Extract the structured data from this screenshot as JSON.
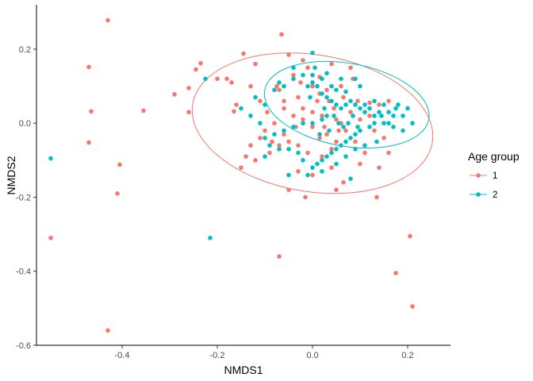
{
  "chart_data": {
    "type": "scatter",
    "title": "",
    "xlabel": "NMDS1",
    "ylabel": "NMDS2",
    "xlim": [
      -0.58,
      0.29
    ],
    "ylim": [
      -0.6,
      0.32
    ],
    "x_ticks": [
      -0.4,
      -0.2,
      0.0,
      0.2
    ],
    "x_tick_labels": [
      "-0.4",
      "-0.2",
      "0.0",
      "0.2"
    ],
    "y_ticks": [
      -0.6,
      -0.4,
      -0.2,
      0.0,
      0.2
    ],
    "y_tick_labels": [
      "-0.6",
      "-0.4",
      "-0.2",
      "0.0",
      "0.2"
    ],
    "grid": false,
    "legend": {
      "title": "Age group",
      "position": "right"
    },
    "series": [
      {
        "name": "1",
        "color": "#F8766D",
        "ellipse": {
          "center": [
            0.0,
            0.0
          ],
          "rx": 0.255,
          "ry": 0.185,
          "angle_deg": -9
        },
        "points": [
          [
            -0.43,
            0.278
          ],
          [
            -0.47,
            0.152
          ],
          [
            -0.465,
            0.032
          ],
          [
            -0.47,
            -0.052
          ],
          [
            -0.405,
            -0.112
          ],
          [
            -0.41,
            -0.19
          ],
          [
            -0.55,
            -0.31
          ],
          [
            -0.43,
            -0.56
          ],
          [
            -0.355,
            0.034
          ],
          [
            -0.29,
            0.078
          ],
          [
            -0.26,
            0.095
          ],
          [
            -0.26,
            0.03
          ],
          [
            -0.245,
            0.145
          ],
          [
            -0.235,
            0.162
          ],
          [
            -0.18,
            0.12
          ],
          [
            -0.165,
            0.032
          ],
          [
            -0.145,
            0.188
          ],
          [
            -0.13,
            0.1
          ],
          [
            -0.12,
            0.16
          ],
          [
            -0.065,
            0.24
          ],
          [
            -0.07,
            0.09
          ],
          [
            -0.05,
            0.185
          ],
          [
            -0.02,
            0.17
          ],
          [
            -0.01,
            0.15
          ],
          [
            0.015,
            0.125
          ],
          [
            0.0,
            0.1
          ],
          [
            0.04,
            0.16
          ],
          [
            0.08,
            0.15
          ],
          [
            0.095,
            0.06
          ],
          [
            0.12,
            0.055
          ],
          [
            0.14,
            0.05
          ],
          [
            0.16,
            0.06
          ],
          [
            0.13,
            -0.02
          ],
          [
            0.15,
            -0.04
          ],
          [
            0.16,
            -0.08
          ],
          [
            0.14,
            -0.12
          ],
          [
            0.135,
            -0.2
          ],
          [
            0.205,
            -0.305
          ],
          [
            0.175,
            -0.405
          ],
          [
            0.21,
            -0.495
          ],
          [
            -0.07,
            -0.36
          ],
          [
            -0.05,
            -0.18
          ],
          [
            -0.015,
            -0.2
          ],
          [
            0.05,
            -0.18
          ],
          [
            0.065,
            -0.16
          ],
          [
            0.1,
            -0.11
          ],
          [
            -0.1,
            -0.02
          ],
          [
            -0.095,
            0.03
          ],
          [
            -0.06,
            0.04
          ],
          [
            -0.04,
            0.02
          ],
          [
            -0.02,
            0.01
          ],
          [
            0.0,
            -0.01
          ],
          [
            0.02,
            0.02
          ],
          [
            0.03,
            -0.03
          ],
          [
            0.05,
            0.01
          ],
          [
            0.06,
            0.0
          ],
          [
            0.07,
            -0.02
          ],
          [
            0.045,
            0.04
          ],
          [
            0.01,
            0.06
          ],
          [
            -0.03,
            0.07
          ],
          [
            -0.06,
            0.06
          ],
          [
            -0.08,
            0.0
          ],
          [
            -0.11,
            -0.04
          ],
          [
            -0.13,
            -0.06
          ],
          [
            -0.14,
            -0.09
          ],
          [
            -0.12,
            -0.1
          ],
          [
            -0.09,
            -0.08
          ],
          [
            -0.07,
            -0.06
          ],
          [
            -0.05,
            -0.05
          ],
          [
            -0.03,
            -0.06
          ],
          [
            -0.01,
            -0.08
          ],
          [
            0.02,
            -0.09
          ],
          [
            0.04,
            -0.07
          ],
          [
            0.05,
            -0.05
          ],
          [
            0.09,
            -0.05
          ],
          [
            0.11,
            -0.08
          ],
          [
            0.03,
            0.09
          ],
          [
            0.06,
            0.1
          ],
          [
            0.085,
            0.12
          ],
          [
            -0.025,
            0.11
          ],
          [
            0.0,
            0.03
          ],
          [
            0.025,
            -0.01
          ],
          [
            0.055,
            -0.02
          ],
          [
            -0.035,
            -0.01
          ],
          [
            -0.06,
            -0.03
          ],
          [
            -0.085,
            -0.05
          ],
          [
            -0.16,
            0.05
          ],
          [
            -0.2,
            0.12
          ],
          [
            -0.04,
            0.13
          ],
          [
            0.015,
            -0.04
          ],
          [
            0.035,
            0.06
          ],
          [
            0.08,
            0.03
          ],
          [
            0.1,
            0.01
          ],
          [
            0.12,
            0.02
          ],
          [
            -0.02,
            0.04
          ],
          [
            -0.075,
            0.1
          ],
          [
            -0.15,
            -0.12
          ],
          [
            -0.03,
            -0.13
          ],
          [
            0.0,
            -0.14
          ],
          [
            -0.17,
            0.11
          ],
          [
            -0.11,
            0.06
          ],
          [
            0.065,
            0.07
          ],
          [
            0.015,
            0.08
          ],
          [
            0.04,
            -0.12
          ]
        ]
      },
      {
        "name": "2",
        "color": "#00BFC4",
        "ellipse": {
          "center": [
            0.072,
            0.05
          ],
          "rx": 0.175,
          "ry": 0.112,
          "angle_deg": -10
        },
        "points": [
          [
            -0.55,
            -0.095
          ],
          [
            -0.215,
            -0.31
          ],
          [
            -0.225,
            0.12
          ],
          [
            -0.15,
            0.04
          ],
          [
            -0.13,
            0.02
          ],
          [
            -0.12,
            0.07
          ],
          [
            -0.1,
            0.05
          ],
          [
            -0.08,
            0.09
          ],
          [
            -0.07,
            0.11
          ],
          [
            -0.06,
            0.1
          ],
          [
            -0.04,
            0.12
          ],
          [
            -0.02,
            0.13
          ],
          [
            0.0,
            0.11
          ],
          [
            0.005,
            0.15
          ],
          [
            0.01,
            0.1
          ],
          [
            0.02,
            0.08
          ],
          [
            0.03,
            0.07
          ],
          [
            0.04,
            0.06
          ],
          [
            0.05,
            0.05
          ],
          [
            0.06,
            0.04
          ],
          [
            0.07,
            0.05
          ],
          [
            0.08,
            0.06
          ],
          [
            0.09,
            0.05
          ],
          [
            0.1,
            0.04
          ],
          [
            0.11,
            0.05
          ],
          [
            0.12,
            0.04
          ],
          [
            0.14,
            0.03
          ],
          [
            0.15,
            0.05
          ],
          [
            0.16,
            0.03
          ],
          [
            0.17,
            0.02
          ],
          [
            0.18,
            0.05
          ],
          [
            0.19,
            0.02
          ],
          [
            0.2,
            0.04
          ],
          [
            0.21,
            0.0
          ],
          [
            0.19,
            -0.02
          ],
          [
            0.17,
            -0.01
          ],
          [
            0.15,
            0.0
          ],
          [
            0.13,
            0.0
          ],
          [
            0.12,
            -0.01
          ],
          [
            0.1,
            -0.02
          ],
          [
            0.09,
            -0.03
          ],
          [
            0.08,
            -0.04
          ],
          [
            0.07,
            -0.05
          ],
          [
            0.06,
            -0.06
          ],
          [
            0.05,
            -0.07
          ],
          [
            0.04,
            -0.08
          ],
          [
            0.03,
            -0.09
          ],
          [
            0.02,
            -0.1
          ],
          [
            0.01,
            -0.11
          ],
          [
            0.0,
            -0.12
          ],
          [
            -0.02,
            -0.1
          ],
          [
            -0.03,
            -0.08
          ],
          [
            -0.05,
            -0.07
          ],
          [
            -0.07,
            -0.07
          ],
          [
            -0.09,
            -0.06
          ],
          [
            -0.1,
            -0.04
          ],
          [
            -0.08,
            -0.03
          ],
          [
            -0.06,
            -0.02
          ],
          [
            -0.04,
            -0.01
          ],
          [
            -0.02,
            0.0
          ],
          [
            0.0,
            0.0
          ],
          [
            0.02,
            0.01
          ],
          [
            0.03,
            0.02
          ],
          [
            0.045,
            0.02
          ],
          [
            0.055,
            0.0
          ],
          [
            0.065,
            -0.01
          ],
          [
            0.075,
            0.0
          ],
          [
            0.085,
            0.02
          ],
          [
            0.1,
            0.1
          ],
          [
            0.09,
            0.12
          ],
          [
            0.06,
            0.12
          ],
          [
            0.04,
            0.1
          ],
          [
            0.02,
            0.12
          ],
          [
            0.0,
            0.13
          ],
          [
            -0.04,
            0.15
          ],
          [
            -0.01,
            0.1
          ],
          [
            0.03,
            0.135
          ],
          [
            0.05,
            0.09
          ],
          [
            0.07,
            0.085
          ],
          [
            0.11,
            0.03
          ],
          [
            0.13,
            0.02
          ],
          [
            0.16,
            0.0
          ],
          [
            0.135,
            -0.05
          ],
          [
            0.11,
            -0.06
          ],
          [
            0.09,
            -0.07
          ],
          [
            0.07,
            -0.09
          ],
          [
            0.05,
            -0.11
          ],
          [
            0.02,
            -0.13
          ],
          [
            -0.01,
            -0.14
          ],
          [
            0.08,
            -0.15
          ],
          [
            -0.05,
            -0.14
          ],
          [
            -0.1,
            -0.09
          ],
          [
            0.13,
            0.06
          ],
          [
            0.025,
            0.04
          ],
          [
            0.035,
            -0.02
          ],
          [
            0.015,
            -0.03
          ],
          [
            0.095,
            -0.01
          ],
          [
            0.145,
            0.02
          ],
          [
            0.175,
            0.04
          ],
          [
            -0.11,
            0.0
          ],
          [
            0.0,
            0.19
          ],
          [
            -0.005,
            0.07
          ]
        ]
      }
    ]
  }
}
